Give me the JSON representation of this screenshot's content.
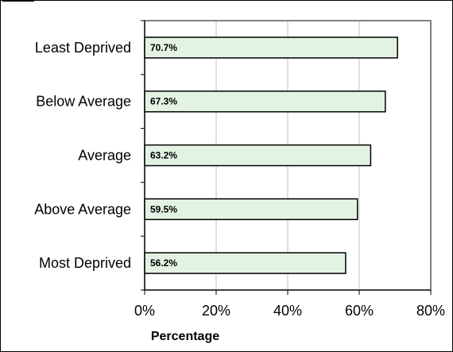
{
  "chart_data": {
    "type": "bar",
    "orientation": "horizontal",
    "title": "",
    "xlabel": "Percentage",
    "ylabel": "",
    "categories": [
      "Least Deprived",
      "Below Average",
      "Average",
      "Above Average",
      "Most Deprived"
    ],
    "values": [
      70.7,
      67.3,
      63.2,
      59.5,
      56.2
    ],
    "data_labels": [
      "70.7%",
      "67.3%",
      "63.2%",
      "59.5%",
      "56.2%"
    ],
    "xlim": [
      0,
      80
    ],
    "xticks": [
      0,
      20,
      40,
      60,
      80
    ],
    "xtick_labels": [
      "0%",
      "20%",
      "40%",
      "60%",
      "80%"
    ],
    "grid": "vertical",
    "legend": "none",
    "colors": {
      "bar_fill": "#e3f3e3",
      "bar_stroke": "#000000",
      "grid": "#c0c0c0",
      "plot_border": "#808080",
      "axis": "#000000"
    }
  }
}
